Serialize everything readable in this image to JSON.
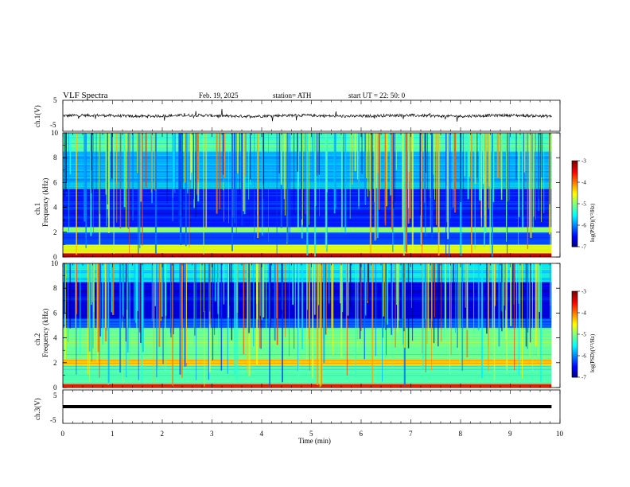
{
  "header": {
    "title": "VLF  Spectra",
    "date": "Feb. 19, 2025",
    "station": "station= ATH",
    "start": "start  UT  =    22: 50: 0"
  },
  "chart_data": [
    {
      "type": "line",
      "name": "ch1-waveform",
      "ylabel": "ch.1(V)",
      "ylim": [
        -5,
        5
      ],
      "yticks": [
        "5",
        "-5"
      ],
      "xlim": [
        0,
        10
      ]
    },
    {
      "type": "heatmap",
      "name": "ch1-spectrogram",
      "ylabel": "ch.1\nFrequency (kHz)",
      "ylabel_lines": [
        "ch.1",
        "Frequency  (kHz)"
      ],
      "ylim": [
        0,
        10
      ],
      "yticks": [
        "0",
        "2",
        "4",
        "6",
        "8",
        "10"
      ],
      "xlim": [
        0,
        10
      ],
      "data_end_min": 9.83,
      "colorbar": {
        "label": "log(PSD)(V²/Hz)",
        "range": [
          -7,
          -3
        ],
        "ticks": [
          "-3",
          "-4",
          "-5",
          "-6",
          "-7"
        ]
      },
      "bands": [
        {
          "freq_khz": [
            0.0,
            0.3
          ],
          "level": -3.3
        },
        {
          "freq_khz": [
            0.3,
            1.0
          ],
          "level": -4.6
        },
        {
          "freq_khz": [
            1.0,
            2.0
          ],
          "level": -6.2
        },
        {
          "freq_khz": [
            2.0,
            2.4
          ],
          "level": -5.0
        },
        {
          "freq_khz": [
            2.4,
            5.5
          ],
          "level": -6.4
        },
        {
          "freq_khz": [
            5.5,
            8.5
          ],
          "level": -5.8
        },
        {
          "freq_khz": [
            8.5,
            10.0
          ],
          "level": -5.2
        }
      ]
    },
    {
      "type": "heatmap",
      "name": "ch2-spectrogram",
      "ylabel_lines": [
        "ch.2",
        "Frequency  (kHz)"
      ],
      "ylim": [
        0,
        10
      ],
      "yticks": [
        "0",
        "2",
        "4",
        "6",
        "8",
        "10"
      ],
      "xlim": [
        0,
        10
      ],
      "data_end_min": 9.83,
      "colorbar": {
        "label": "log(PSD)(V²/Hz)",
        "range": [
          -7,
          -3
        ],
        "ticks": [
          "-3",
          "-4",
          "-5",
          "-6",
          "-7"
        ]
      },
      "bands": [
        {
          "freq_khz": [
            0.0,
            0.3
          ],
          "level": -3.6
        },
        {
          "freq_khz": [
            0.3,
            1.8
          ],
          "level": -5.2
        },
        {
          "freq_khz": [
            1.8,
            2.3
          ],
          "level": -4.3
        },
        {
          "freq_khz": [
            2.3,
            4.8
          ],
          "level": -5.1
        },
        {
          "freq_khz": [
            4.8,
            5.5
          ],
          "level": -6.2
        },
        {
          "freq_khz": [
            5.5,
            8.5
          ],
          "level": -6.6
        },
        {
          "freq_khz": [
            8.5,
            10.0
          ],
          "level": -5.6
        }
      ]
    },
    {
      "type": "line",
      "name": "ch3-waveform",
      "ylabel": "ch.3(V)",
      "ylim": [
        -5,
        5
      ],
      "yticks": [
        "5",
        "-5"
      ],
      "xlim": [
        0,
        10
      ],
      "xlabel": "Time  (min)",
      "xticks": [
        "0",
        "1",
        "2",
        "3",
        "4",
        "5",
        "6",
        "7",
        "8",
        "9",
        "10"
      ]
    }
  ]
}
